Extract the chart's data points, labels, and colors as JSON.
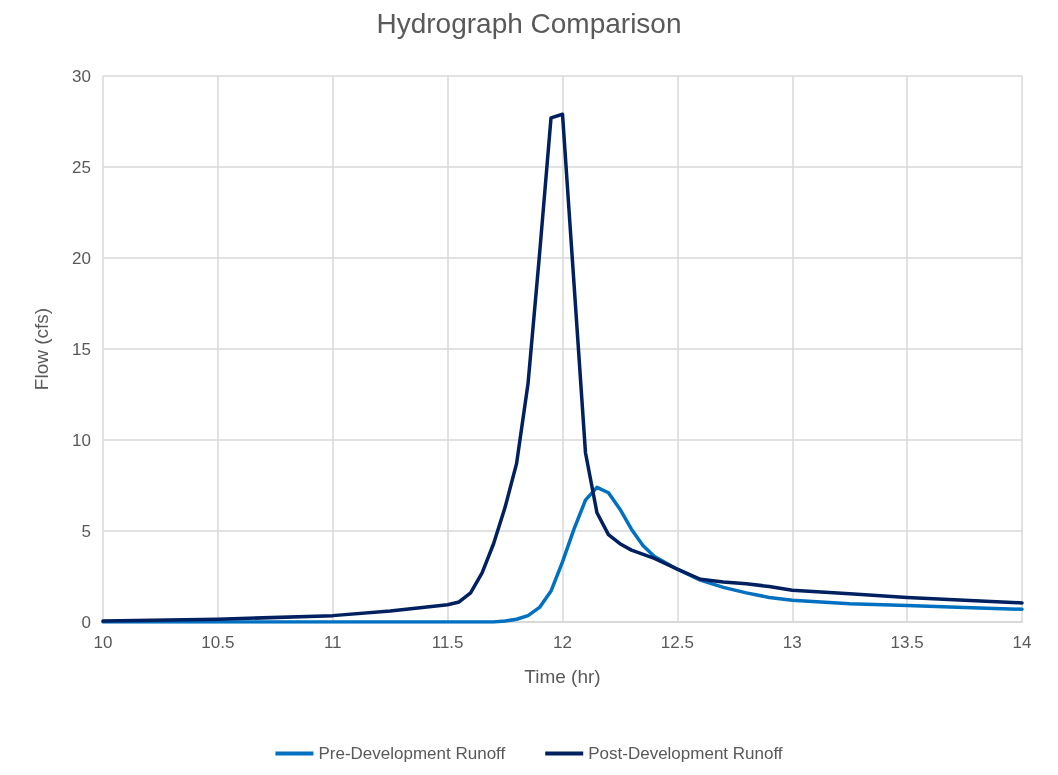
{
  "chart_data": {
    "type": "line",
    "title": "Hydrograph Comparison",
    "xlabel": "Time (hr)",
    "ylabel": "Flow (cfs)",
    "xlim": [
      10,
      14
    ],
    "xticks": [
      10,
      10.5,
      11,
      11.5,
      12,
      12.5,
      13,
      13.5,
      14
    ],
    "ylim": [
      0,
      30
    ],
    "yticks": [
      0,
      5,
      10,
      15,
      20,
      25,
      30
    ],
    "grid": true,
    "legend": "bottom",
    "marker": "none",
    "line_style": "solid",
    "series": [
      {
        "name": "Pre-Development Runoff",
        "color": "#0070c0",
        "x": [
          10,
          10.5,
          11,
          11.5,
          11.7,
          11.75,
          11.8,
          11.85,
          11.9,
          11.95,
          12,
          12.05,
          12.1,
          12.15,
          12.2,
          12.25,
          12.3,
          12.35,
          12.4,
          12.5,
          12.6,
          12.7,
          12.8,
          12.9,
          13,
          13.25,
          13.5,
          13.75,
          14
        ],
        "values": [
          0,
          0,
          0,
          0,
          0,
          0.05,
          0.15,
          0.35,
          0.8,
          1.7,
          3.3,
          5.1,
          6.7,
          7.4,
          7.1,
          6.2,
          5.1,
          4.2,
          3.6,
          2.9,
          2.3,
          1.9,
          1.6,
          1.35,
          1.2,
          1.0,
          0.9,
          0.8,
          0.7
        ]
      },
      {
        "name": "Post-Development Runoff",
        "color": "#002060",
        "x": [
          10,
          10.5,
          11,
          11.25,
          11.5,
          11.55,
          11.6,
          11.65,
          11.7,
          11.75,
          11.8,
          11.85,
          11.9,
          11.95,
          12,
          12.05,
          12.1,
          12.15,
          12.2,
          12.25,
          12.3,
          12.4,
          12.5,
          12.6,
          12.7,
          12.8,
          12.9,
          13,
          13.25,
          13.5,
          13.75,
          14
        ],
        "values": [
          0.05,
          0.15,
          0.35,
          0.6,
          0.95,
          1.1,
          1.6,
          2.7,
          4.3,
          6.3,
          8.7,
          13.1,
          20.2,
          27.7,
          27.9,
          18.6,
          9.3,
          6.0,
          4.8,
          4.3,
          3.95,
          3.5,
          2.9,
          2.35,
          2.2,
          2.1,
          1.95,
          1.75,
          1.55,
          1.35,
          1.2,
          1.05
        ]
      }
    ]
  }
}
